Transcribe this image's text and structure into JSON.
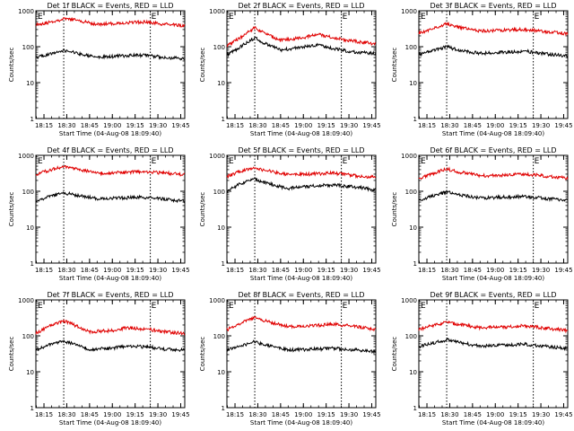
{
  "figure": {
    "colors": {
      "events": "#000000",
      "lld": "#e00000",
      "axes": "#000000",
      "background": "#ffffff"
    },
    "event_marker_left": "E",
    "event_marker_right": "E"
  },
  "chart_data": [
    {
      "type": "line",
      "title": "Det 1f BLACK = Events, RED = LLD",
      "xlabel": "Start Time (04-Aug-08 18:09:40)",
      "ylabel": "Counts/sec",
      "x_ticks": [
        "18:15",
        "18:30",
        "18:45",
        "19:00",
        "19:15",
        "19:30",
        "19:45"
      ],
      "y_ticks": [
        "1",
        "10",
        "100",
        "1000"
      ],
      "yscale": "log",
      "ylim": [
        1,
        1000
      ],
      "xlim_minutes_after_18_09_40": [
        0,
        98
      ],
      "event_lines": [
        "18:28",
        "19:25"
      ],
      "series": [
        {
          "name": "LLD",
          "color": "#e00000",
          "x": [
            "18:10",
            "18:18",
            "18:28",
            "18:35",
            "18:50",
            "19:05",
            "19:20",
            "19:35",
            "19:48"
          ],
          "values": [
            420,
            470,
            590,
            560,
            420,
            450,
            490,
            420,
            380
          ]
        },
        {
          "name": "Events",
          "color": "#000000",
          "x": [
            "18:10",
            "18:18",
            "18:28",
            "18:35",
            "18:50",
            "19:05",
            "19:20",
            "19:35",
            "19:48"
          ],
          "values": [
            50,
            60,
            80,
            68,
            50,
            55,
            58,
            50,
            46
          ]
        }
      ]
    },
    {
      "type": "line",
      "title": "Det 2f BLACK = Events, RED = LLD",
      "xlabel": "Start Time (04-Aug-08 18:09:40)",
      "ylabel": "Counts/sec",
      "x_ticks": [
        "18:15",
        "18:30",
        "18:45",
        "19:00",
        "19:15",
        "19:30",
        "19:45"
      ],
      "y_ticks": [
        "1",
        "10",
        "100",
        "1000"
      ],
      "yscale": "log",
      "ylim": [
        1,
        1000
      ],
      "xlim_minutes_after_18_09_40": [
        0,
        98
      ],
      "event_lines": [
        "18:28",
        "19:25"
      ],
      "series": [
        {
          "name": "LLD",
          "color": "#e00000",
          "x": [
            "18:10",
            "18:18",
            "18:28",
            "18:35",
            "18:45",
            "19:00",
            "19:10",
            "19:25",
            "19:35",
            "19:48"
          ],
          "values": [
            110,
            170,
            340,
            230,
            150,
            180,
            220,
            160,
            140,
            120
          ]
        },
        {
          "name": "Events",
          "color": "#000000",
          "x": [
            "18:10",
            "18:18",
            "18:28",
            "18:35",
            "18:45",
            "19:00",
            "19:10",
            "19:25",
            "19:35",
            "19:48"
          ],
          "values": [
            60,
            95,
            180,
            120,
            80,
            100,
            110,
            80,
            70,
            65
          ]
        }
      ]
    },
    {
      "type": "line",
      "title": "Det 3f BLACK = Events, RED = LLD",
      "xlabel": "Start Time (04-Aug-08 18:09:40)",
      "ylabel": "Counts/sec",
      "x_ticks": [
        "18:15",
        "18:30",
        "18:45",
        "19:00",
        "19:15",
        "19:30",
        "19:45"
      ],
      "y_ticks": [
        "1",
        "10",
        "100",
        "1000"
      ],
      "yscale": "log",
      "ylim": [
        1,
        1000
      ],
      "xlim_minutes_after_18_09_40": [
        0,
        98
      ],
      "event_lines": [
        "18:28",
        "19:25"
      ],
      "series": [
        {
          "name": "LLD",
          "color": "#e00000",
          "x": [
            "18:10",
            "18:18",
            "18:28",
            "18:35",
            "18:50",
            "19:05",
            "19:20",
            "19:35",
            "19:48"
          ],
          "values": [
            240,
            300,
            430,
            350,
            270,
            290,
            300,
            260,
            230
          ]
        },
        {
          "name": "Events",
          "color": "#000000",
          "x": [
            "18:10",
            "18:18",
            "18:28",
            "18:35",
            "18:50",
            "19:05",
            "19:20",
            "19:35",
            "19:48"
          ],
          "values": [
            60,
            75,
            100,
            82,
            65,
            70,
            75,
            62,
            55
          ]
        }
      ]
    },
    {
      "type": "line",
      "title": "Det 4f BLACK = Events, RED = LLD",
      "xlabel": "Start Time (04-Aug-08 18:09:40)",
      "ylabel": "Counts/sec",
      "x_ticks": [
        "18:15",
        "18:30",
        "18:45",
        "19:00",
        "19:15",
        "19:30",
        "19:45"
      ],
      "y_ticks": [
        "1",
        "10",
        "100",
        "1000"
      ],
      "yscale": "log",
      "ylim": [
        1,
        1000
      ],
      "xlim_minutes_after_18_09_40": [
        0,
        98
      ],
      "event_lines": [
        "18:28",
        "19:25"
      ],
      "series": [
        {
          "name": "LLD",
          "color": "#e00000",
          "x": [
            "18:10",
            "18:18",
            "18:28",
            "18:35",
            "18:50",
            "19:05",
            "19:20",
            "19:35",
            "19:48"
          ],
          "values": [
            300,
            380,
            480,
            420,
            320,
            330,
            350,
            320,
            290
          ]
        },
        {
          "name": "Events",
          "color": "#000000",
          "x": [
            "18:10",
            "18:18",
            "18:28",
            "18:35",
            "18:50",
            "19:05",
            "19:20",
            "19:35",
            "19:48"
          ],
          "values": [
            55,
            70,
            90,
            80,
            62,
            65,
            68,
            60,
            52
          ]
        }
      ]
    },
    {
      "type": "line",
      "title": "Det 5f BLACK = Events, RED = LLD",
      "xlabel": "Start Time (04-Aug-08 18:09:40)",
      "ylabel": "Counts/sec",
      "x_ticks": [
        "18:15",
        "18:30",
        "18:45",
        "19:00",
        "19:15",
        "19:30",
        "19:45"
      ],
      "y_ticks": [
        "1",
        "10",
        "100",
        "1000"
      ],
      "yscale": "log",
      "ylim": [
        1,
        1000
      ],
      "xlim_minutes_after_18_09_40": [
        0,
        98
      ],
      "event_lines": [
        "18:28",
        "19:25"
      ],
      "series": [
        {
          "name": "LLD",
          "color": "#e00000",
          "x": [
            "18:10",
            "18:18",
            "18:28",
            "18:35",
            "18:50",
            "19:05",
            "19:20",
            "19:35",
            "19:48"
          ],
          "values": [
            260,
            350,
            450,
            380,
            290,
            300,
            320,
            270,
            240
          ]
        },
        {
          "name": "Events",
          "color": "#000000",
          "x": [
            "18:10",
            "18:18",
            "18:28",
            "18:35",
            "18:50",
            "19:05",
            "19:20",
            "19:35",
            "19:48"
          ],
          "values": [
            100,
            160,
            220,
            170,
            120,
            140,
            150,
            130,
            110
          ]
        }
      ]
    },
    {
      "type": "line",
      "title": "Det 6f BLACK = Events, RED = LLD",
      "xlabel": "Start Time (04-Aug-08 18:09:40)",
      "ylabel": "Counts/sec",
      "x_ticks": [
        "18:15",
        "18:30",
        "18:45",
        "19:00",
        "19:15",
        "19:30",
        "19:45"
      ],
      "y_ticks": [
        "1",
        "10",
        "100",
        "1000"
      ],
      "yscale": "log",
      "ylim": [
        1,
        1000
      ],
      "xlim_minutes_after_18_09_40": [
        0,
        98
      ],
      "event_lines": [
        "18:28",
        "19:25"
      ],
      "series": [
        {
          "name": "LLD",
          "color": "#e00000",
          "x": [
            "18:10",
            "18:18",
            "18:28",
            "18:35",
            "18:50",
            "19:05",
            "19:20",
            "19:35",
            "19:48"
          ],
          "values": [
            230,
            300,
            420,
            350,
            270,
            280,
            300,
            260,
            230
          ]
        },
        {
          "name": "Events",
          "color": "#000000",
          "x": [
            "18:10",
            "18:18",
            "18:28",
            "18:35",
            "18:50",
            "19:05",
            "19:20",
            "19:35",
            "19:48"
          ],
          "values": [
            55,
            72,
            95,
            80,
            65,
            68,
            72,
            62,
            55
          ]
        }
      ]
    },
    {
      "type": "line",
      "title": "Det 7f BLACK = Events, RED = LLD",
      "xlabel": "Start Time (04-Aug-08 18:09:40)",
      "ylabel": "Counts/sec",
      "x_ticks": [
        "18:15",
        "18:30",
        "18:45",
        "19:00",
        "19:15",
        "19:30",
        "19:45"
      ],
      "y_ticks": [
        "1",
        "10",
        "100",
        "1000"
      ],
      "yscale": "log",
      "ylim": [
        1,
        1000
      ],
      "xlim_minutes_after_18_09_40": [
        0,
        98
      ],
      "event_lines": [
        "18:28",
        "19:25"
      ],
      "series": [
        {
          "name": "LLD",
          "color": "#e00000",
          "x": [
            "18:10",
            "18:18",
            "18:28",
            "18:35",
            "18:45",
            "19:00",
            "19:10",
            "19:25",
            "19:35",
            "19:48"
          ],
          "values": [
            120,
            180,
            260,
            200,
            130,
            140,
            170,
            150,
            130,
            115
          ]
        },
        {
          "name": "Events",
          "color": "#000000",
          "x": [
            "18:10",
            "18:18",
            "18:28",
            "18:35",
            "18:45",
            "19:00",
            "19:10",
            "19:25",
            "19:35",
            "19:48"
          ],
          "values": [
            40,
            55,
            70,
            58,
            42,
            45,
            52,
            48,
            42,
            40
          ]
        }
      ]
    },
    {
      "type": "line",
      "title": "Det 8f BLACK = Events, RED = LLD",
      "xlabel": "Start Time (04-Aug-08 18:09:40)",
      "ylabel": "Counts/sec",
      "x_ticks": [
        "18:15",
        "18:30",
        "18:45",
        "19:00",
        "19:15",
        "19:30",
        "19:45"
      ],
      "y_ticks": [
        "1",
        "10",
        "100",
        "1000"
      ],
      "yscale": "log",
      "ylim": [
        1,
        1000
      ],
      "xlim_minutes_after_18_09_40": [
        0,
        98
      ],
      "event_lines": [
        "18:28",
        "19:25"
      ],
      "series": [
        {
          "name": "LLD",
          "color": "#e00000",
          "x": [
            "18:10",
            "18:18",
            "18:28",
            "18:35",
            "18:50",
            "19:05",
            "19:20",
            "19:35",
            "19:48"
          ],
          "values": [
            150,
            220,
            320,
            260,
            180,
            190,
            210,
            180,
            150
          ]
        },
        {
          "name": "Events",
          "color": "#000000",
          "x": [
            "18:10",
            "18:18",
            "18:28",
            "18:35",
            "18:50",
            "19:05",
            "19:20",
            "19:35",
            "19:48"
          ],
          "values": [
            40,
            52,
            68,
            56,
            40,
            42,
            45,
            40,
            36
          ]
        }
      ]
    },
    {
      "type": "line",
      "title": "Det 9f BLACK = Events, RED = LLD",
      "xlabel": "Start Time (04-Aug-08 18:09:40)",
      "ylabel": "Counts/sec",
      "x_ticks": [
        "18:15",
        "18:30",
        "18:45",
        "19:00",
        "19:15",
        "19:30",
        "19:45"
      ],
      "y_ticks": [
        "1",
        "10",
        "100",
        "1000"
      ],
      "yscale": "log",
      "ylim": [
        1,
        1000
      ],
      "xlim_minutes_after_18_09_40": [
        0,
        98
      ],
      "event_lines": [
        "18:28",
        "19:25"
      ],
      "series": [
        {
          "name": "LLD",
          "color": "#e00000",
          "x": [
            "18:10",
            "18:18",
            "18:28",
            "18:35",
            "18:50",
            "19:05",
            "19:20",
            "19:35",
            "19:48"
          ],
          "values": [
            150,
            190,
            240,
            210,
            170,
            175,
            190,
            160,
            140
          ]
        },
        {
          "name": "Events",
          "color": "#000000",
          "x": [
            "18:10",
            "18:18",
            "18:28",
            "18:35",
            "18:50",
            "19:05",
            "19:20",
            "19:35",
            "19:48"
          ],
          "values": [
            50,
            62,
            78,
            66,
            52,
            55,
            58,
            50,
            45
          ]
        }
      ]
    }
  ]
}
